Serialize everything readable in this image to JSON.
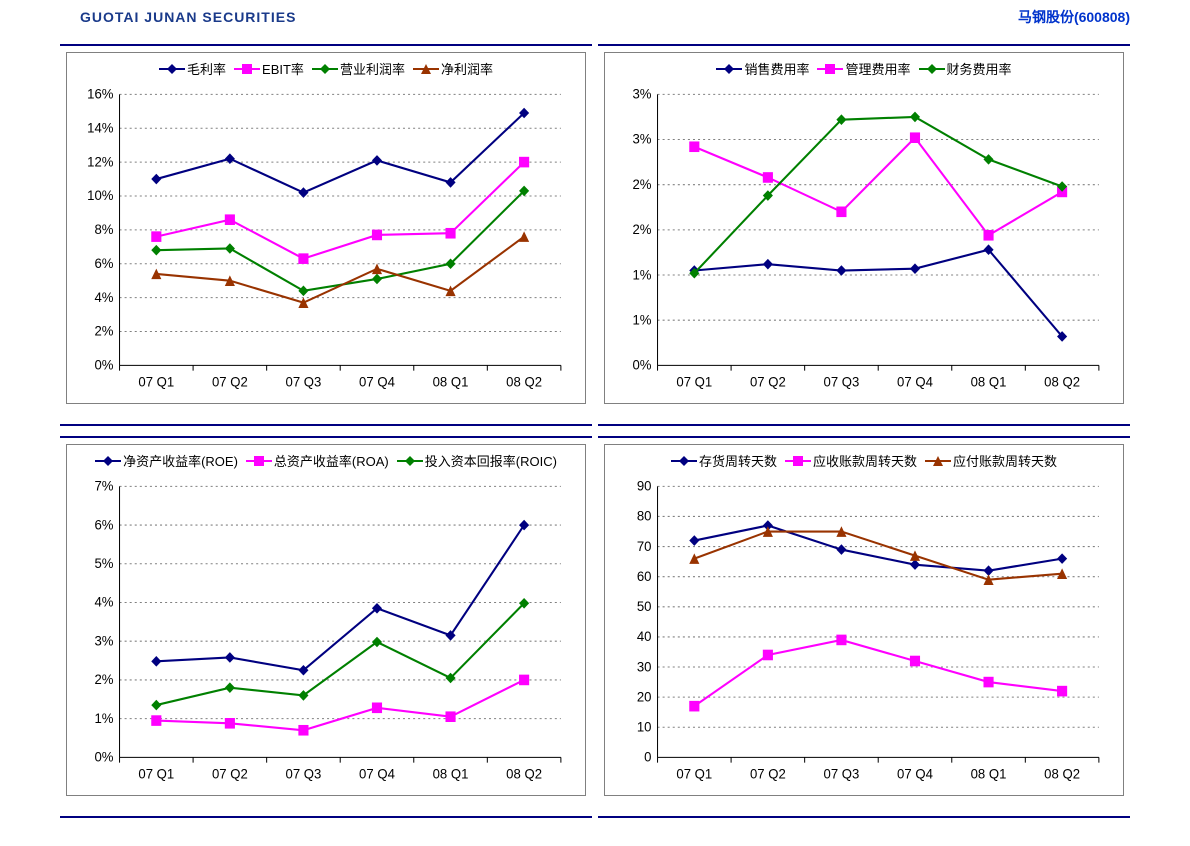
{
  "brand": "GUOTAI JUNAN SECURITIES",
  "stock": "马钢股份(600808)",
  "categories": [
    "07 Q1",
    "07 Q2",
    "07 Q3",
    "07 Q4",
    "08 Q1",
    "08 Q2"
  ],
  "palette": {
    "navy": "#000080",
    "magenta": "#ff00ff",
    "green": "#008000",
    "brown": "#993300"
  },
  "charts": [
    {
      "id": "profit",
      "yformat": "pct",
      "ymin": 0,
      "ymax": 16,
      "ystep": 2,
      "series": [
        {
          "name": "毛利率",
          "color": "#000080",
          "marker": "diamond",
          "values": [
            11.0,
            12.2,
            10.2,
            12.1,
            10.8,
            14.9
          ]
        },
        {
          "name": "EBIT率",
          "color": "#ff00ff",
          "marker": "square",
          "values": [
            7.6,
            8.6,
            6.3,
            7.7,
            7.8,
            12.0
          ]
        },
        {
          "name": "营业利润率",
          "color": "#008000",
          "marker": "diamond",
          "values": [
            6.8,
            6.9,
            4.4,
            5.1,
            6.0,
            10.3
          ]
        },
        {
          "name": "净利润率",
          "color": "#993300",
          "marker": "triangle",
          "values": [
            5.4,
            5.0,
            3.7,
            5.7,
            4.4,
            7.6
          ]
        }
      ]
    },
    {
      "id": "expense",
      "yformat": "pct",
      "ymin": 0,
      "ymax": 3,
      "ystep": 0.5,
      "ylabels": [
        "0%",
        "1%",
        "1%",
        "2%",
        "2%",
        "3%",
        "3%"
      ],
      "series": [
        {
          "name": "销售费用率",
          "color": "#000080",
          "marker": "diamond",
          "values": [
            1.05,
            1.12,
            1.05,
            1.07,
            1.28,
            0.32
          ]
        },
        {
          "name": "管理费用率",
          "color": "#ff00ff",
          "marker": "square",
          "values": [
            2.42,
            2.08,
            1.7,
            2.52,
            1.44,
            1.92
          ]
        },
        {
          "name": "财务费用率",
          "color": "#008000",
          "marker": "diamond",
          "values": [
            1.02,
            1.88,
            2.72,
            2.75,
            2.28,
            1.98
          ]
        }
      ]
    },
    {
      "id": "returns",
      "yformat": "pct",
      "ymin": 0,
      "ymax": 7,
      "ystep": 1,
      "series": [
        {
          "name": "净资产收益率(ROE)",
          "color": "#000080",
          "marker": "diamond",
          "values": [
            2.48,
            2.58,
            2.25,
            3.85,
            3.15,
            6.0
          ]
        },
        {
          "name": "总资产收益率(ROA)",
          "color": "#ff00ff",
          "marker": "square",
          "values": [
            0.95,
            0.88,
            0.7,
            1.28,
            1.05,
            2.0
          ]
        },
        {
          "name": "投入资本回报率(ROIC)",
          "color": "#008000",
          "marker": "diamond",
          "values": [
            1.35,
            1.8,
            1.6,
            2.98,
            2.05,
            3.98
          ]
        }
      ]
    },
    {
      "id": "turnover",
      "yformat": "num",
      "ymin": 0,
      "ymax": 90,
      "ystep": 10,
      "series": [
        {
          "name": "存货周转天数",
          "color": "#000080",
          "marker": "diamond",
          "values": [
            72,
            77,
            69,
            64,
            62,
            66
          ]
        },
        {
          "name": "应收账款周转天数",
          "color": "#ff00ff",
          "marker": "square",
          "values": [
            17,
            34,
            39,
            32,
            25,
            22
          ]
        },
        {
          "name": "应付账款周转天数",
          "color": "#993300",
          "marker": "triangle",
          "values": [
            66,
            75,
            75,
            67,
            59,
            61
          ]
        }
      ]
    }
  ]
}
